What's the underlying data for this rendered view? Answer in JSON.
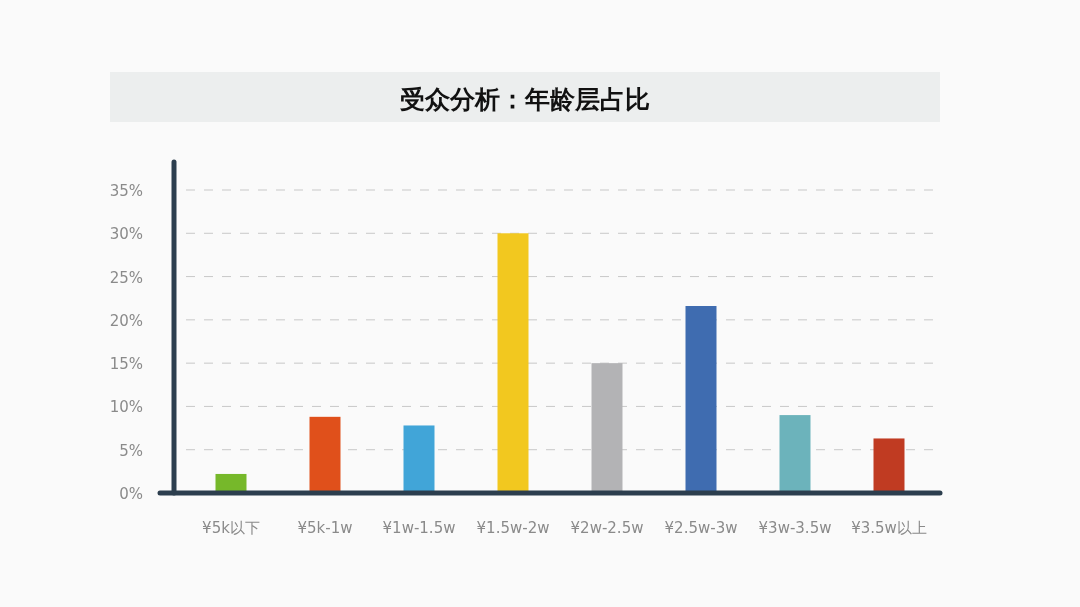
{
  "chart_data": {
    "type": "bar",
    "title": "受众分析：年龄层占比",
    "categories": [
      "¥5k以下",
      "¥5k-1w",
      "¥1w-1.5w",
      "¥1.5w-2w",
      "¥2w-2.5w",
      "¥2.5w-3w",
      "¥3w-3.5w",
      "¥3.5w以上"
    ],
    "values": [
      2.2,
      8.8,
      7.8,
      30.0,
      15.0,
      21.6,
      9.0,
      6.3
    ],
    "colors": [
      "#76b82a",
      "#e0501b",
      "#41a5d8",
      "#f2c81f",
      "#b3b3b5",
      "#3f6cb0",
      "#6cb3bb",
      "#c03b22"
    ],
    "ylim": [
      0,
      35
    ],
    "yticks": [
      {
        "value": 0,
        "label": "0%"
      },
      {
        "value": 5,
        "label": "5%"
      },
      {
        "value": 10,
        "label": "10%"
      },
      {
        "value": 15,
        "label": "15%"
      },
      {
        "value": 20,
        "label": "20%"
      },
      {
        "value": 25,
        "label": "25%"
      },
      {
        "value": 30,
        "label": "30%"
      },
      {
        "value": 35,
        "label": "35%"
      }
    ],
    "grid": "y"
  }
}
